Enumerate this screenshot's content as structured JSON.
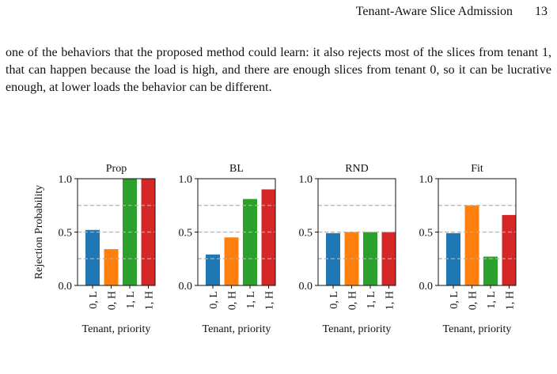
{
  "running_head": {
    "title": "Tenant-Aware Slice Admission",
    "page_number": "13"
  },
  "paragraph": "one of the behaviors that the proposed method could learn: it also rejects most of the slices from tenant 1, that can happen because the load is high, and there are enough slices from tenant 0, so it can be lucrative enough, at lower loads the behavior can be different.",
  "bottom_text": "",
  "colors": {
    "blue": "#1f77b4",
    "orange": "#ff7f0e",
    "green": "#2ca02c",
    "red": "#d62728",
    "grid": "#b0b0b0"
  },
  "chart_data": [
    {
      "type": "bar",
      "title": "Prop",
      "categories": [
        "0, L",
        "0, H",
        "1, L",
        "1, H"
      ],
      "values": [
        0.52,
        0.34,
        1.0,
        1.0
      ],
      "ylabel": "Rejection Probability",
      "xlabel": "Tenant, priority",
      "ylim": [
        0,
        1.0
      ],
      "yticks": [
        "0.0",
        "0.5",
        "1.0"
      ],
      "grid": "dashed horizontal at 0.25, 0.5, 0.75"
    },
    {
      "type": "bar",
      "title": "BL",
      "categories": [
        "0, L",
        "0, H",
        "1, L",
        "1, H"
      ],
      "values": [
        0.29,
        0.45,
        0.81,
        0.9
      ],
      "ylabel": "",
      "xlabel": "Tenant, priority",
      "ylim": [
        0,
        1.0
      ],
      "yticks": [
        "0.0",
        "0.5",
        "1.0"
      ],
      "grid": "dashed horizontal at 0.25, 0.5, 0.75"
    },
    {
      "type": "bar",
      "title": "RND",
      "categories": [
        "0, L",
        "0, H",
        "1, L",
        "1, H"
      ],
      "values": [
        0.49,
        0.5,
        0.5,
        0.5
      ],
      "ylabel": "",
      "xlabel": "Tenant, priority",
      "ylim": [
        0,
        1.0
      ],
      "yticks": [
        "0.0",
        "0.5",
        "1.0"
      ],
      "grid": "dashed horizontal at 0.25, 0.5, 0.75"
    },
    {
      "type": "bar",
      "title": "Fit",
      "categories": [
        "0, L",
        "0, H",
        "1, L",
        "1, H"
      ],
      "values": [
        0.49,
        0.75,
        0.27,
        0.66
      ],
      "ylabel": "",
      "xlabel": "Tenant, priority",
      "ylim": [
        0,
        1.0
      ],
      "yticks": [
        "0.0",
        "0.5",
        "1.0"
      ],
      "grid": "dashed horizontal at 0.25, 0.5, 0.75"
    }
  ]
}
